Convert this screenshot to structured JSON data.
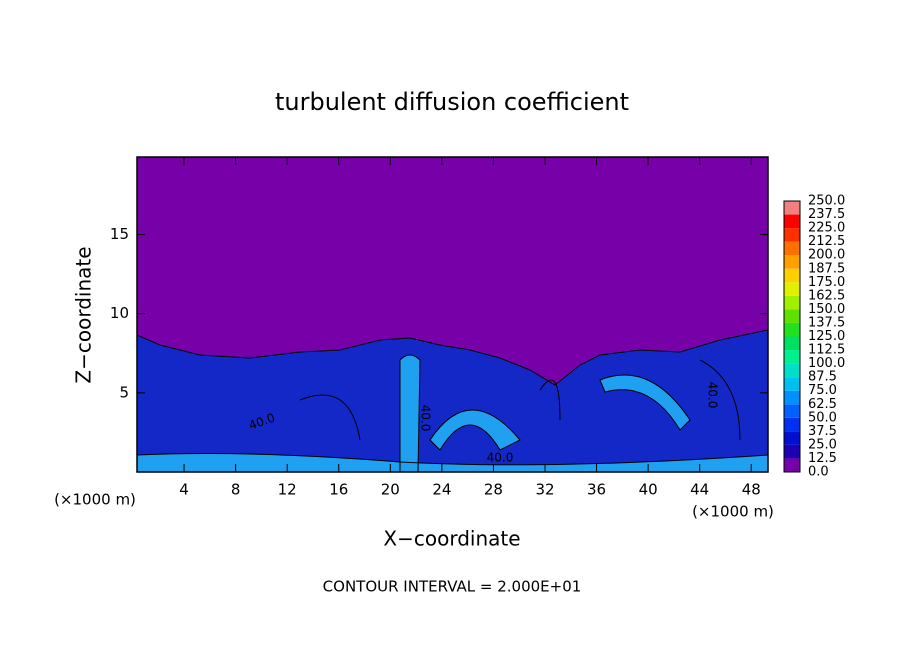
{
  "chart_data": {
    "type": "contour",
    "title": "turbulent diffusion coefficient",
    "xlabel": "X−coordinate",
    "ylabel": "Z−coordinate",
    "x_unit_left": "(×1000 m)",
    "x_unit_right": "(×1000 m)",
    "annotation": "CONTOUR INTERVAL = 2.000E+01",
    "xlim": [
      0.35,
      49.3
    ],
    "ylim": [
      0,
      19.9
    ],
    "xticks": [
      4,
      8,
      12,
      16,
      20,
      24,
      28,
      32,
      36,
      40,
      44,
      48
    ],
    "yticks": [
      5,
      10,
      15
    ],
    "contour_labels": [
      "40.0",
      "40.0",
      "40.0",
      "40.0"
    ],
    "colorbar": {
      "levels": [
        {
          "value": 0,
          "label": "0.0"
        },
        12.5,
        {
          "value": 25,
          "label": "25.0"
        },
        37.5,
        {
          "value": 50,
          "label": "50.0"
        },
        62.5,
        {
          "value": 75,
          "label": "75.0"
        },
        87.5,
        {
          "value": 100,
          "label": "100.0"
        },
        112.5,
        {
          "value": 125,
          "label": "125.0"
        },
        137.5,
        {
          "value": 150,
          "label": "150.0"
        },
        162.5,
        {
          "value": 175,
          "label": "175.0"
        },
        187.5,
        {
          "value": 200,
          "label": "200.0"
        },
        212.5,
        {
          "value": 225,
          "label": "225.0"
        },
        237.5,
        {
          "value": 250,
          "label": "250.0"
        }
      ],
      "colors": [
        "#7800a8",
        "#1c00b4",
        "#0010d0",
        "#0030f0",
        "#0060ff",
        "#0090ff",
        "#00c0f0",
        "#00e0c8",
        "#00f090",
        "#00e060",
        "#20e020",
        "#60e000",
        "#a0f000",
        "#e0f000",
        "#ffd000",
        "#ffa000",
        "#ff7000",
        "#ff3000",
        "#ff0000",
        "#f08080"
      ]
    }
  }
}
